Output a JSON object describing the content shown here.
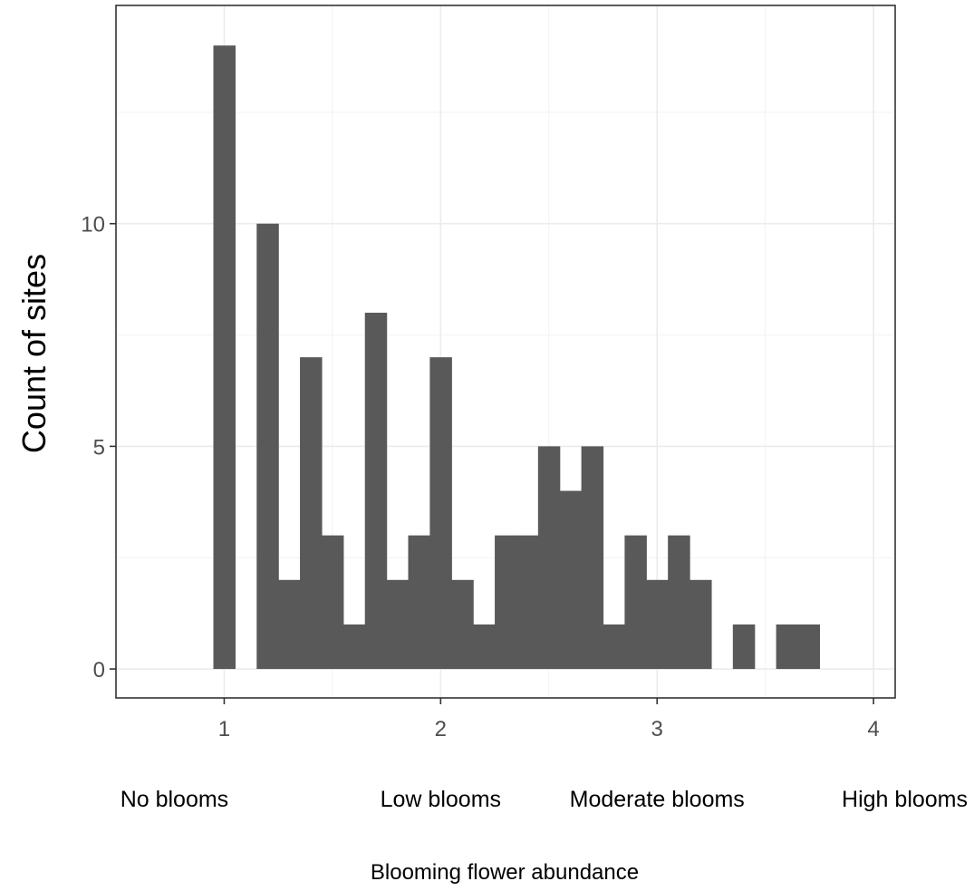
{
  "chart_data": {
    "type": "bar",
    "subtype": "histogram",
    "xlabel": "Blooming flower abundance",
    "ylabel": "Count of sites",
    "xlim": [
      0.5,
      4.1
    ],
    "ylim": [
      -0.65,
      14.9
    ],
    "x_ticks": [
      1,
      2,
      3,
      4
    ],
    "y_ticks": [
      0,
      5,
      10
    ],
    "y_minor_gridlines": [
      2.5,
      7.5,
      12.5
    ],
    "x_minor_gridlines": [
      0.5,
      1.5,
      2.5,
      3.5
    ],
    "grid": true,
    "bin_width": 0.1,
    "bar_color": "#595959",
    "bins": [
      {
        "x": 1.0,
        "count": 14
      },
      {
        "x": 1.1,
        "count": 0
      },
      {
        "x": 1.2,
        "count": 10
      },
      {
        "x": 1.3,
        "count": 2
      },
      {
        "x": 1.4,
        "count": 7
      },
      {
        "x": 1.5,
        "count": 3
      },
      {
        "x": 1.6,
        "count": 1
      },
      {
        "x": 1.7,
        "count": 8
      },
      {
        "x": 1.8,
        "count": 2
      },
      {
        "x": 1.9,
        "count": 3
      },
      {
        "x": 2.0,
        "count": 7
      },
      {
        "x": 2.1,
        "count": 2
      },
      {
        "x": 2.2,
        "count": 1
      },
      {
        "x": 2.3,
        "count": 3
      },
      {
        "x": 2.4,
        "count": 3
      },
      {
        "x": 2.5,
        "count": 5
      },
      {
        "x": 2.6,
        "count": 4
      },
      {
        "x": 2.7,
        "count": 5
      },
      {
        "x": 2.8,
        "count": 1
      },
      {
        "x": 2.9,
        "count": 3
      },
      {
        "x": 3.0,
        "count": 2
      },
      {
        "x": 3.1,
        "count": 3
      },
      {
        "x": 3.2,
        "count": 2
      },
      {
        "x": 3.3,
        "count": 0
      },
      {
        "x": 3.4,
        "count": 1
      },
      {
        "x": 3.5,
        "count": 0
      },
      {
        "x": 3.6,
        "count": 1
      },
      {
        "x": 3.7,
        "count": 1
      }
    ],
    "category_labels": [
      {
        "text": "No blooms",
        "at": 1
      },
      {
        "text": "Low blooms",
        "at": 2
      },
      {
        "text": "Moderate blooms",
        "at": 3
      },
      {
        "text": "High blooms",
        "at": 4
      }
    ]
  }
}
